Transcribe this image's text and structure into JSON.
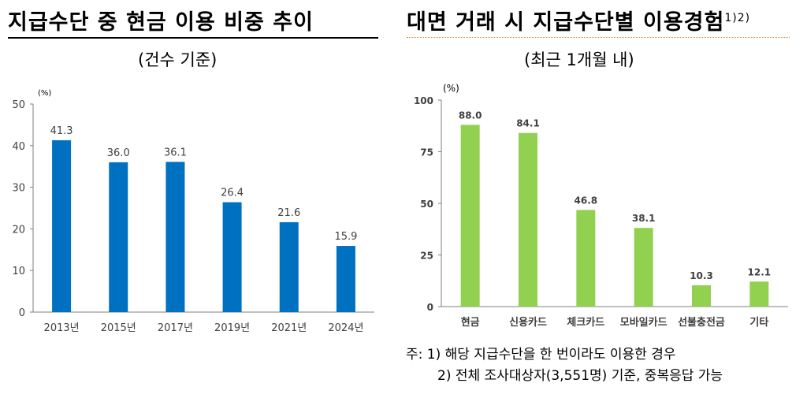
{
  "left_panel": {
    "title": "지급수단 중 현금 이용 비중 추이",
    "subtitle": "(건수 기준)"
  },
  "right_panel": {
    "title": "대면 거래 시 지급수단별 이용경험",
    "title_sup": "1)2)",
    "subtitle": "(최근 1개월 내)"
  },
  "notes": {
    "line1": "주: 1) 해당 지급수단을 한 번이라도 이용한 경우",
    "line2": "2) 전체 조사대상자(3,551명) 기준, 중복응답 가능"
  },
  "chart_data": [
    {
      "type": "bar",
      "title": "지급수단 중 현금 이용 비중 추이",
      "subtitle": "(건수 기준)",
      "unit_label": "(%)",
      "categories": [
        "2013년",
        "2015년",
        "2017년",
        "2019년",
        "2021년",
        "2024년"
      ],
      "values": [
        41.3,
        36.0,
        36.1,
        26.4,
        21.6,
        15.9
      ],
      "value_labels": [
        "41.3",
        "36.0",
        "36.1",
        "26.4",
        "21.6",
        "15.9"
      ],
      "yticks": [
        "0",
        "10",
        "20",
        "30",
        "40",
        "50"
      ],
      "ylim": [
        0,
        50
      ],
      "bar_color": "#0070c0",
      "grid": false
    },
    {
      "type": "bar",
      "title": "대면 거래 시 지급수단별 이용경험",
      "subtitle": "(최근 1개월 내)",
      "unit_label": "(%)",
      "categories": [
        "현금",
        "신용카드",
        "체크카드",
        "모바일카드",
        "선불충전금",
        "기타"
      ],
      "values": [
        88.0,
        84.1,
        46.8,
        38.1,
        10.3,
        12.1
      ],
      "value_labels": [
        "88.0",
        "84.1",
        "46.8",
        "38.1",
        "10.3",
        "12.1"
      ],
      "yticks": [
        "0",
        "25",
        "50",
        "75",
        "100"
      ],
      "ylim": [
        0,
        100
      ],
      "bar_color": "#92d050",
      "grid": false
    }
  ]
}
